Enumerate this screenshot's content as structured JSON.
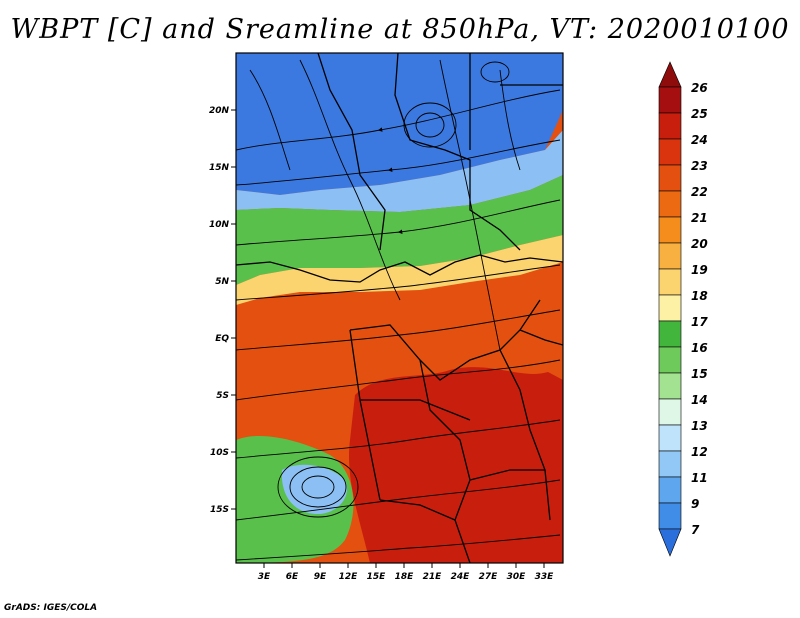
{
  "title": "WBPT [C] and Sreamline at 850hPa, VT: 2020010100",
  "footer": "GrADS: IGES/COLA",
  "map": {
    "lon_ticks": [
      "3E",
      "6E",
      "9E",
      "12E",
      "15E",
      "18E",
      "21E",
      "24E",
      "27E",
      "30E",
      "33E"
    ],
    "lat_ticks": [
      "20N",
      "15N",
      "10N",
      "5N",
      "EQ",
      "5S",
      "10S",
      "15S"
    ]
  },
  "colorbar": {
    "labels": [
      "26",
      "25",
      "24",
      "23",
      "22",
      "21",
      "20",
      "19",
      "18",
      "17",
      "16",
      "15",
      "14",
      "13",
      "12",
      "11",
      "9",
      "7"
    ],
    "colors": [
      "#a50f0f",
      "#c81e0e",
      "#d9340e",
      "#e4500f",
      "#ec6a12",
      "#f48d1c",
      "#f8b141",
      "#fbd36f",
      "#fdf1a6",
      "#42b63c",
      "#6ecb5b",
      "#a2e291",
      "#dff7e7",
      "#bfe3fb",
      "#92c8f6",
      "#5ea7ef",
      "#3f8de6",
      "#2a6fdc"
    ],
    "arrow_top_color": "#8f0c0c",
    "arrow_bottom_color": "#2a6fdc"
  },
  "field_colors": {
    "north": "#3b79e0",
    "blue_light": "#8cc0f4",
    "green": "#59c04c",
    "yellow": "#fbd36f",
    "orange": "#e4500f",
    "red": "#c81e0e"
  }
}
